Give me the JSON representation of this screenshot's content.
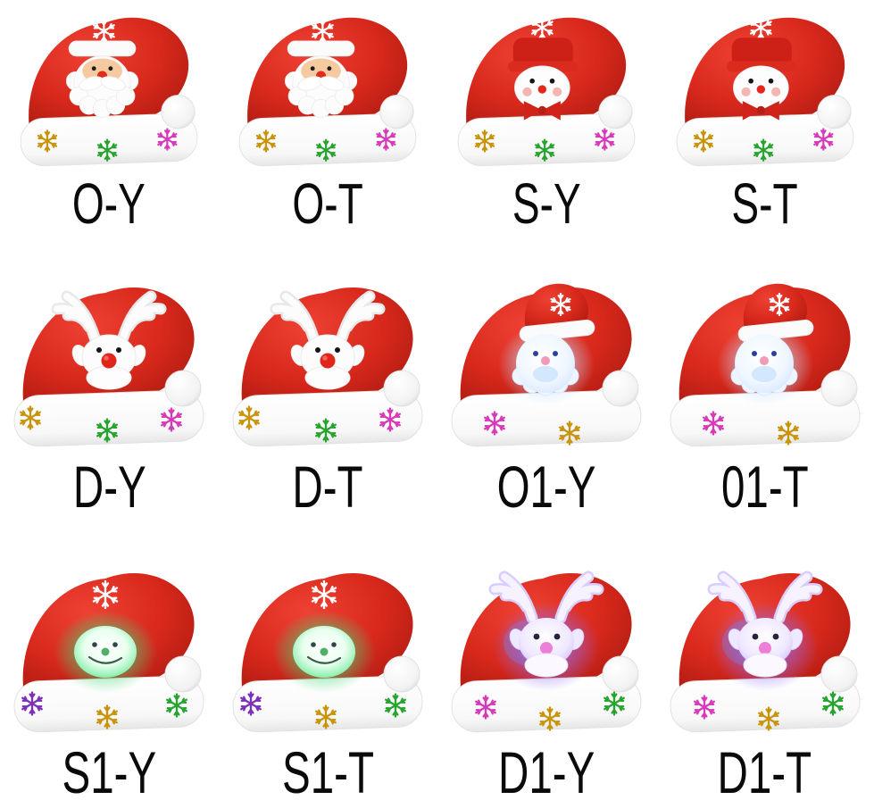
{
  "page": {
    "background": "#ffffff",
    "description": "Christmas hat style chart: 12 hat variants in a 4x3 grid with variant codes"
  },
  "palette": {
    "hat_red": "#d8281c",
    "hat_red_light": "#ee4133",
    "hat_red_dark": "#a81a10",
    "brim_white": "#ffffff",
    "label_color": "#0a0a0a",
    "sequin_gold": "#c8940c",
    "sequin_green": "#27a32f",
    "sequin_magenta": "#d63ab8",
    "sequin_purple": "#7c2fb8",
    "led_blue_white": "#bfe0ff",
    "led_green": "#46d977",
    "led_purple": "#8f6cf0"
  },
  "products": [
    {
      "label": "O-Y",
      "variant": "santa",
      "icon": "santa-face-hat-photo",
      "led": false,
      "sequins": [
        "gold",
        "green",
        "magenta"
      ]
    },
    {
      "label": "O-T",
      "variant": "santa",
      "icon": "santa-face-hat-photo",
      "led": false,
      "sequins": [
        "gold",
        "green",
        "magenta"
      ]
    },
    {
      "label": "S-Y",
      "variant": "snowman",
      "icon": "snowman-face-hat-photo",
      "led": false,
      "sequins": [
        "gold",
        "green",
        "magenta"
      ]
    },
    {
      "label": "S-T",
      "variant": "snowman",
      "icon": "snowman-face-hat-photo",
      "led": false,
      "sequins": [
        "gold",
        "green",
        "magenta"
      ]
    },
    {
      "label": "D-Y",
      "variant": "reindeer",
      "icon": "reindeer-face-hat-photo",
      "led": false,
      "sequins": [
        "gold",
        "green",
        "magenta"
      ]
    },
    {
      "label": "D-T",
      "variant": "reindeer",
      "icon": "reindeer-face-hat-photo",
      "led": false,
      "sequins": [
        "gold",
        "green",
        "magenta"
      ]
    },
    {
      "label": "O1-Y",
      "variant": "led-santa",
      "icon": "led-santa-hat-photo",
      "led": true,
      "led_color": "blue-white",
      "sequins": [
        "magenta",
        "gold"
      ]
    },
    {
      "label": "01-T",
      "variant": "led-santa",
      "icon": "led-santa-hat-photo",
      "led": true,
      "led_color": "blue-white",
      "sequins": [
        "magenta",
        "gold"
      ]
    },
    {
      "label": "S1-Y",
      "variant": "led-snowman",
      "icon": "led-snowman-hat-photo",
      "led": true,
      "led_color": "green",
      "sequins": [
        "purple",
        "gold",
        "green"
      ]
    },
    {
      "label": "S1-T",
      "variant": "led-snowman",
      "icon": "led-snowman-hat-photo",
      "led": true,
      "led_color": "green",
      "sequins": [
        "purple",
        "gold",
        "green"
      ]
    },
    {
      "label": "D1-Y",
      "variant": "led-reindeer",
      "icon": "led-reindeer-hat-photo",
      "led": true,
      "led_color": "purple",
      "sequins": [
        "magenta",
        "gold",
        "green"
      ]
    },
    {
      "label": "D1-T",
      "variant": "led-reindeer",
      "icon": "led-reindeer-hat-photo",
      "led": true,
      "led_color": "purple",
      "sequins": [
        "magenta",
        "gold",
        "green"
      ]
    }
  ]
}
